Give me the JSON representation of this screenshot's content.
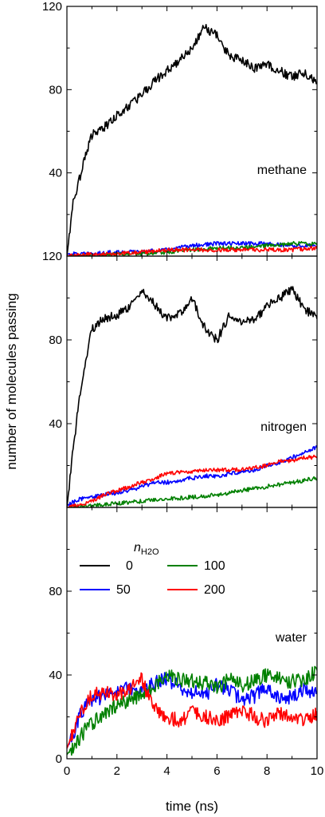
{
  "chart_data": [
    {
      "type": "line",
      "label": "methane",
      "xlim": [
        0,
        10
      ],
      "ylim": [
        0,
        120
      ],
      "yticks": [
        "",
        "40",
        "80",
        "120"
      ],
      "series": [
        {
          "name": "0",
          "color": "#000000",
          "x": [
            0,
            0.25,
            0.5,
            0.75,
            1,
            1.5,
            2,
            2.5,
            3,
            3.5,
            4,
            4.5,
            5,
            5.5,
            6,
            6.5,
            7,
            7.5,
            8,
            8.5,
            9,
            9.5,
            10
          ],
          "y": [
            0,
            26,
            37,
            49,
            58,
            62,
            68,
            72,
            78,
            84,
            89,
            94,
            100,
            110,
            106,
            96,
            94,
            90,
            92,
            89,
            86,
            88,
            84
          ]
        },
        {
          "name": "50",
          "color": "#0000ff",
          "x": [
            0,
            1,
            2,
            3,
            4,
            5,
            6,
            7,
            8,
            9,
            10
          ],
          "y": [
            1,
            1,
            2,
            2,
            3,
            5,
            6,
            6,
            6,
            5,
            5
          ]
        },
        {
          "name": "100",
          "color": "#008000",
          "x": [
            0,
            1,
            2,
            3,
            4,
            5,
            6,
            7,
            8,
            9,
            10
          ],
          "y": [
            0,
            0,
            1,
            1,
            2,
            3,
            4,
            4,
            5,
            6,
            6
          ]
        },
        {
          "name": "200",
          "color": "#ff0000",
          "x": [
            0,
            1,
            2,
            3,
            4,
            5,
            6,
            7,
            8,
            9,
            10
          ],
          "y": [
            0,
            1,
            1,
            2,
            3,
            3,
            3,
            3,
            3,
            3,
            4
          ]
        }
      ]
    },
    {
      "type": "line",
      "label": "nitrogen",
      "xlim": [
        0,
        10
      ],
      "ylim": [
        0,
        120
      ],
      "yticks": [
        "",
        "40",
        "80",
        "120"
      ],
      "series": [
        {
          "name": "0",
          "color": "#000000",
          "x": [
            0,
            0.25,
            0.5,
            0.75,
            1,
            1.25,
            1.5,
            2,
            2.5,
            3,
            3.5,
            4,
            4.5,
            5,
            5.5,
            6,
            6.5,
            7,
            7.5,
            8,
            8.5,
            9,
            9.5,
            10
          ],
          "y": [
            0,
            28,
            52,
            70,
            85,
            88,
            90,
            92,
            95,
            103,
            97,
            90,
            92,
            100,
            86,
            80,
            92,
            88,
            90,
            96,
            100,
            104,
            95,
            90
          ]
        },
        {
          "name": "50",
          "color": "#0000ff",
          "x": [
            0,
            0.5,
            1,
            1.5,
            2,
            2.5,
            3,
            3.5,
            4,
            4.5,
            5,
            5.5,
            6,
            6.5,
            7,
            7.5,
            8,
            8.5,
            9,
            9.5,
            10
          ],
          "y": [
            1,
            4,
            5,
            6,
            7,
            8,
            10,
            12,
            12,
            13,
            14,
            15,
            15,
            16,
            17,
            18,
            20,
            21,
            24,
            26,
            29
          ]
        },
        {
          "name": "100",
          "color": "#008000",
          "x": [
            0,
            1,
            2,
            3,
            4,
            5,
            6,
            7,
            8,
            9,
            10
          ],
          "y": [
            0,
            1,
            2,
            3,
            4,
            5,
            6,
            8,
            10,
            12,
            14
          ]
        },
        {
          "name": "200",
          "color": "#ff0000",
          "x": [
            0,
            0.5,
            1,
            1.5,
            2,
            2.5,
            3,
            3.5,
            4,
            4.5,
            5,
            5.5,
            6,
            6.5,
            7,
            7.5,
            8,
            8.5,
            9,
            9.5,
            10
          ],
          "y": [
            0,
            1,
            3,
            6,
            8,
            10,
            12,
            14,
            16,
            17,
            17,
            18,
            18,
            18,
            18,
            19,
            20,
            22,
            22,
            24,
            24
          ]
        }
      ]
    },
    {
      "type": "line",
      "label": "water",
      "xlim": [
        0,
        10
      ],
      "ylim": [
        0,
        120
      ],
      "xticks": [
        "0",
        "2",
        "4",
        "6",
        "8",
        "10"
      ],
      "yticks": [
        "0",
        "40",
        "80",
        ""
      ],
      "xlabel": "time (ns)",
      "legend": {
        "title_main": "n",
        "title_sub": "H2O",
        "placement": "top-left",
        "columns": 2
      },
      "series": [
        {
          "name": "50",
          "color": "#0000ff",
          "x": [
            0,
            0.25,
            0.5,
            0.75,
            1,
            1.5,
            2,
            2.5,
            3,
            3.5,
            4,
            4.5,
            5,
            5.5,
            6,
            6.5,
            7,
            7.5,
            8,
            8.5,
            9,
            9.5,
            10
          ],
          "y": [
            5,
            12,
            20,
            26,
            28,
            30,
            32,
            34,
            33,
            36,
            38,
            34,
            32,
            30,
            36,
            32,
            28,
            30,
            34,
            28,
            30,
            33,
            32
          ]
        },
        {
          "name": "100",
          "color": "#008000",
          "x": [
            0,
            0.25,
            0.5,
            0.75,
            1,
            1.5,
            2,
            2.5,
            3,
            3.5,
            4,
            4.5,
            5,
            5.5,
            6,
            6.5,
            7,
            7.5,
            8,
            8.5,
            9,
            9.5,
            10
          ],
          "y": [
            2,
            6,
            10,
            14,
            17,
            22,
            26,
            28,
            30,
            35,
            40,
            38,
            37,
            36,
            34,
            38,
            35,
            37,
            40,
            38,
            37,
            38,
            42
          ]
        },
        {
          "name": "200",
          "color": "#ff0000",
          "x": [
            0,
            0.25,
            0.5,
            0.75,
            1,
            1.5,
            2,
            2.5,
            3,
            3.25,
            3.5,
            4,
            4.5,
            5,
            5.5,
            6,
            6.5,
            7,
            7.5,
            8,
            8.5,
            9,
            9.5,
            10
          ],
          "y": [
            5,
            13,
            22,
            27,
            30,
            32,
            30,
            34,
            38,
            30,
            25,
            20,
            18,
            22,
            20,
            18,
            20,
            24,
            20,
            18,
            22,
            20,
            18,
            22
          ]
        },
        {
          "name": "0",
          "color": "#000000",
          "x": [],
          "y": []
        }
      ]
    }
  ],
  "ylabel": "number of molecules passing"
}
